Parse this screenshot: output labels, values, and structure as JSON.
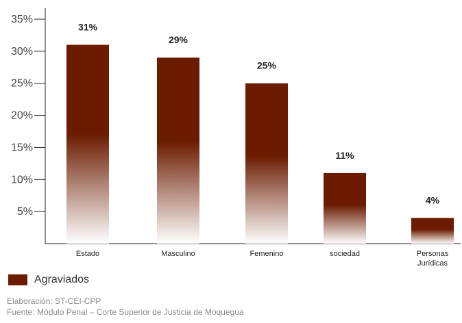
{
  "chart_data": {
    "type": "bar",
    "categories": [
      "Estado",
      "Masculino",
      "Femenino",
      "sociedad",
      "Personas Jurídicas"
    ],
    "category_lines": [
      [
        "Estado"
      ],
      [
        "Masculino"
      ],
      [
        "Femenino"
      ],
      [
        "sociedad"
      ],
      [
        "Personas",
        "Jurídicas"
      ]
    ],
    "series": [
      {
        "name": "Agraviados",
        "values": [
          31,
          29,
          25,
          11,
          4
        ]
      }
    ],
    "data_labels": [
      "31%",
      "29%",
      "25%",
      "11%",
      "4%"
    ],
    "yticks": [
      5,
      10,
      15,
      20,
      25,
      30,
      35
    ],
    "ytick_labels": [
      "5%",
      "10%",
      "15%",
      "20%",
      "25%",
      "30%",
      "35%"
    ],
    "ylim": [
      0,
      35
    ],
    "grid": false,
    "legend_position": "bottom-left",
    "colors": {
      "bar": "#6b1c00",
      "bar_fade": "#ffffff",
      "axis": "#222222"
    }
  },
  "legend": {
    "label": "Agraviados"
  },
  "footer": {
    "line1": "Elaboración: ST-CEI-CPP",
    "line2": "Fuente: Módulo Penal – Corte Superior de Justicia de Moquegua"
  }
}
